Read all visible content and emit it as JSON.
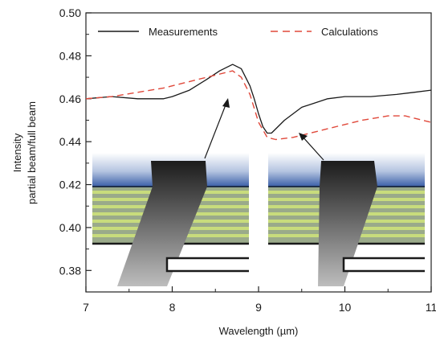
{
  "chart_data": {
    "type": "line",
    "xlabel": "Wavelength (µm)",
    "ylabel_line1": "Intensity",
    "ylabel_line2": "partial beam/full beam",
    "xlim": [
      7,
      11
    ],
    "ylim": [
      0.37,
      0.5
    ],
    "x_ticks": [
      7,
      8,
      9,
      10,
      11
    ],
    "y_ticks": [
      0.38,
      0.4,
      0.42,
      0.44,
      0.46,
      0.48,
      0.5
    ],
    "y_tick_labels": [
      "0.38",
      "0.40",
      "0.42",
      "0.44",
      "0.46",
      "0.48",
      "0.50"
    ],
    "grid": false,
    "legend_position": "top",
    "series": [
      {
        "name": "Measurements",
        "style": "solid",
        "color": "#1a1a1a",
        "x": [
          7.0,
          7.3,
          7.6,
          7.9,
          8.0,
          8.2,
          8.4,
          8.55,
          8.7,
          8.8,
          8.9,
          8.95,
          9.0,
          9.05,
          9.1,
          9.15,
          9.3,
          9.5,
          9.8,
          10.0,
          10.3,
          10.6,
          10.8,
          11.0
        ],
        "y": [
          0.46,
          0.461,
          0.46,
          0.46,
          0.461,
          0.464,
          0.469,
          0.473,
          0.476,
          0.474,
          0.466,
          0.46,
          0.453,
          0.447,
          0.444,
          0.444,
          0.45,
          0.456,
          0.46,
          0.461,
          0.461,
          0.462,
          0.463,
          0.464
        ]
      },
      {
        "name": "Calculations",
        "style": "dashed",
        "color": "#e0483a",
        "x": [
          7.0,
          7.3,
          7.6,
          7.9,
          8.1,
          8.3,
          8.5,
          8.7,
          8.8,
          8.9,
          9.0,
          9.1,
          9.2,
          9.4,
          9.6,
          9.8,
          10.0,
          10.2,
          10.5,
          10.7,
          10.9,
          11.0
        ],
        "y": [
          0.46,
          0.461,
          0.463,
          0.465,
          0.467,
          0.469,
          0.471,
          0.473,
          0.47,
          0.462,
          0.449,
          0.442,
          0.441,
          0.442,
          0.444,
          0.446,
          0.448,
          0.45,
          0.452,
          0.452,
          0.45,
          0.449
        ]
      }
    ]
  }
}
